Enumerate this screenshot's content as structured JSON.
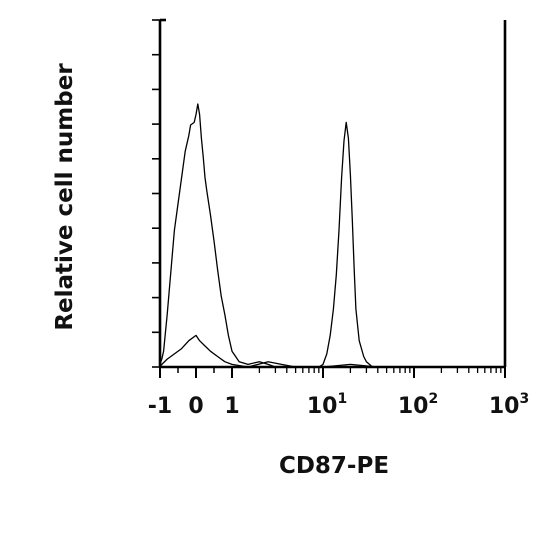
{
  "chart_data": {
    "type": "line",
    "xlabel": "CD87-PE",
    "ylabel": "Relative cell number",
    "x_scale": "biexponential",
    "xlim": [
      -1,
      1000
    ],
    "grid": false,
    "legend": "none",
    "x_tick_labels": [
      {
        "value": -1,
        "base": "-1",
        "exp": ""
      },
      {
        "value": 0,
        "base": "0",
        "exp": ""
      },
      {
        "value": 1,
        "base": "1",
        "exp": ""
      },
      {
        "value": 10,
        "base": "10",
        "exp": "1"
      },
      {
        "value": 100,
        "base": "10",
        "exp": "2"
      },
      {
        "value": 1000,
        "base": "10",
        "exp": "3"
      }
    ],
    "series": [
      {
        "x": [
          -1,
          -0.95,
          -0.8,
          -0.6,
          -0.4,
          -0.2,
          0,
          0.1,
          0.25,
          0.4,
          0.6,
          0.8,
          1,
          1.5,
          2.5,
          3.5,
          5,
          10,
          20,
          40,
          70,
          100,
          200,
          400,
          1000
        ],
        "y": [
          0,
          1,
          3,
          5,
          7,
          10,
          12,
          10,
          8,
          6,
          4,
          2,
          1,
          0,
          2,
          1,
          0,
          0,
          1,
          0,
          0,
          0,
          0,
          0,
          0
        ]
      },
      {
        "x": [
          -1,
          -0.95,
          -0.9,
          -0.85,
          -0.8,
          -0.7,
          -0.6,
          -0.5,
          -0.4,
          -0.3,
          -0.2,
          -0.15,
          -0.05,
          0,
          0.05,
          0.1,
          0.15,
          0.2,
          0.25,
          0.3,
          0.4,
          0.5,
          0.6,
          0.7,
          0.8,
          0.9,
          1,
          1.2,
          1.5,
          2,
          2.5,
          3,
          3.5,
          5,
          7,
          9,
          10,
          11,
          12,
          13,
          14,
          15,
          16,
          17,
          18,
          19,
          20,
          21,
          22,
          23,
          25,
          28,
          30,
          35,
          40,
          50,
          70,
          100,
          1000
        ],
        "y": [
          1,
          3,
          6,
          13,
          20,
          36,
          52,
          62,
          72,
          82,
          88,
          92,
          93,
          96,
          100,
          96,
          87,
          80,
          72,
          67,
          58,
          48,
          37,
          27,
          20,
          12,
          6,
          2,
          1,
          2,
          1,
          0,
          0,
          0,
          0,
          0,
          1,
          5,
          12,
          22,
          35,
          52,
          72,
          86,
          93,
          87,
          73,
          56,
          37,
          22,
          10,
          4,
          2,
          0,
          0,
          0,
          0,
          0,
          0
        ]
      }
    ]
  }
}
